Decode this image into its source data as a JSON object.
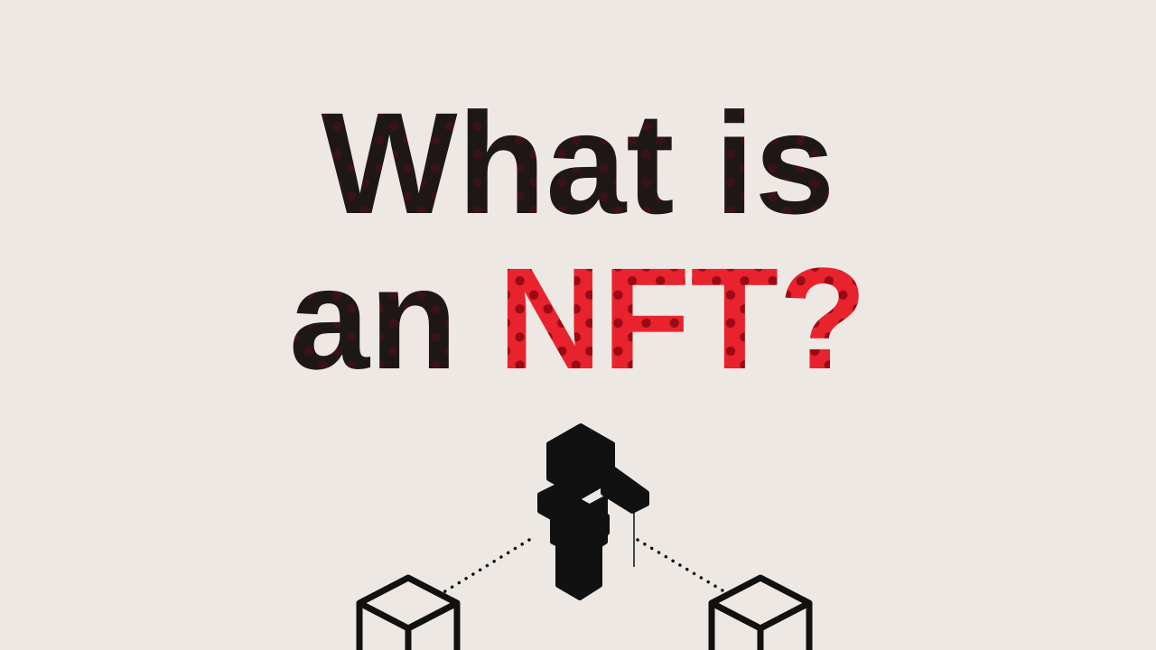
{
  "title": {
    "line1": "What is",
    "line2_prefix": "an ",
    "line2_highlight": "NFT?"
  },
  "colors": {
    "background": "#ede8e3",
    "text_dark": "#1d1718",
    "text_highlight": "#e8232e",
    "dot_dark": "#3a1218",
    "dot_highlight": "#9a0a14",
    "illustration": "#111111"
  },
  "illustration": {
    "figure": "blocky-person-pointing",
    "left_object": "wireframe-cube",
    "right_object": "wireframe-cube",
    "connector": "dotted-line"
  }
}
